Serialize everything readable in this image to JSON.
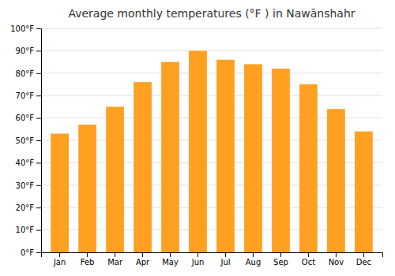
{
  "chart_data": {
    "type": "bar",
    "title": "Average monthly temperatures (°F ) in Nawānshahr",
    "categories": [
      "Jan",
      "Feb",
      "Mar",
      "Apr",
      "May",
      "Jun",
      "Jul",
      "Aug",
      "Sep",
      "Oct",
      "Nov",
      "Dec"
    ],
    "values": [
      53,
      57,
      65,
      76,
      85,
      90,
      86,
      84,
      82,
      75,
      64,
      54
    ],
    "color": "#FFA020",
    "ylim": [
      0,
      100
    ],
    "yticks": [
      {
        "value": 0,
        "label": "0°F"
      },
      {
        "value": 10,
        "label": "10°F"
      },
      {
        "value": 20,
        "label": "20°F"
      },
      {
        "value": 30,
        "label": "30°F"
      },
      {
        "value": 40,
        "label": "40°F"
      },
      {
        "value": 50,
        "label": "50°F"
      },
      {
        "value": 60,
        "label": "60°F"
      },
      {
        "value": 70,
        "label": "70°F"
      },
      {
        "value": 80,
        "label": "80°F"
      },
      {
        "value": 90,
        "label": "90°F"
      },
      {
        "value": 100,
        "label": "100°F"
      }
    ],
    "grid": true
  }
}
